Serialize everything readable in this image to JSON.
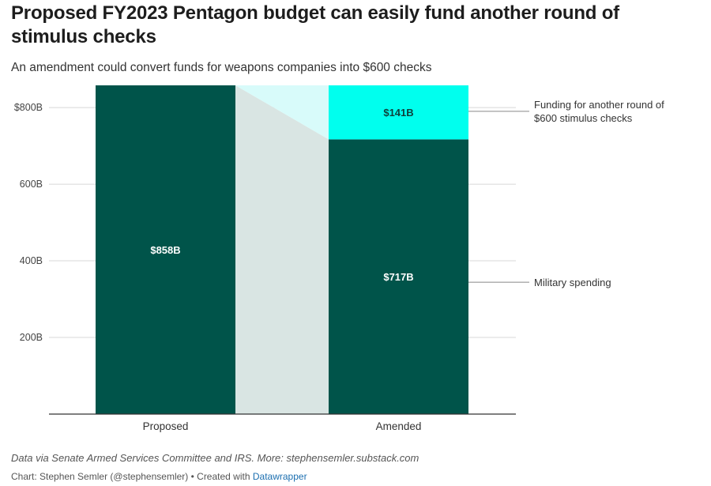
{
  "header": {
    "title": "Proposed FY2023 Pentagon budget can easily fund another round of stimulus checks",
    "subtitle": "An amendment could convert funds for weapons companies into $600 checks"
  },
  "footer": {
    "notes": "Data via Senate Armed Services Committee and IRS. More: stephensemler.substack.com",
    "credit_prefix": "Chart: Stephen Semler (@stephensemler) • Created with ",
    "credit_link": "Datawrapper"
  },
  "colors": {
    "military": "#00544a",
    "stimulus": "#00ffee",
    "stimulus_flow": "#d8fbfa",
    "military_flow": "#d9e5e3",
    "gridline": "#d8d8d8",
    "baseline": "#333333"
  },
  "chart_data": {
    "type": "bar",
    "stacked": true,
    "categories": [
      "Proposed",
      "Amended"
    ],
    "series": [
      {
        "key": "military",
        "values": [
          858,
          717
        ],
        "value_labels": [
          "$858B",
          "$717B"
        ],
        "annotation": "Military spending"
      },
      {
        "key": "stimulus",
        "values": [
          0,
          141
        ],
        "value_labels": [
          "",
          "$141B"
        ],
        "annotation": "Funding for another round of $600 stimulus checks"
      }
    ],
    "yticks": [
      200,
      400,
      600,
      800
    ],
    "ytick_labels": [
      "200B",
      "400B",
      "600B",
      "$800B"
    ],
    "ylim": [
      0,
      858
    ],
    "grid": true,
    "legend": "direct labels on right"
  }
}
